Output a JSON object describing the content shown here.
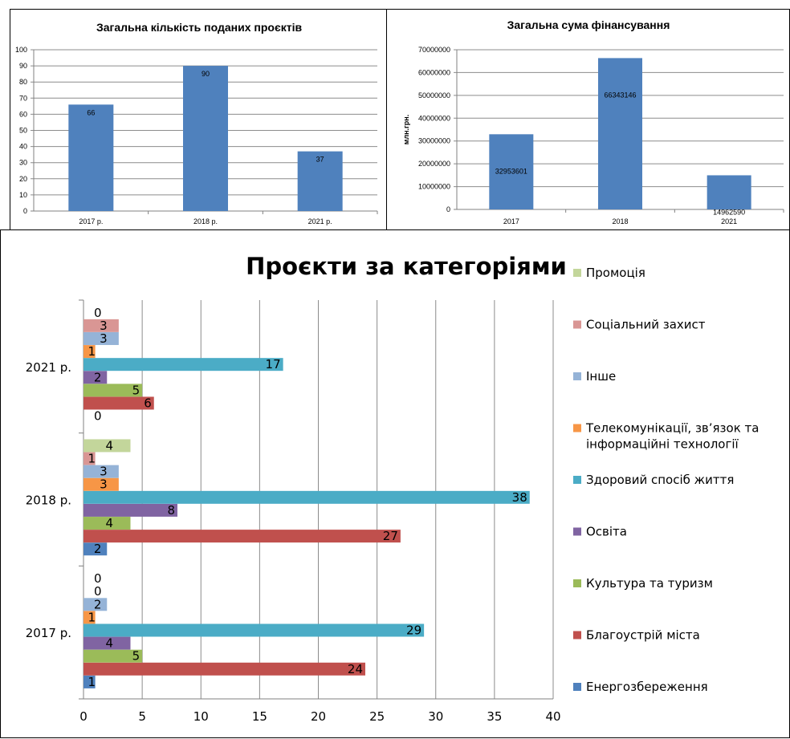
{
  "colors": {
    "bar": "#4F81BD",
    "grid": "#8C8C8C",
    "axis": "#808080"
  },
  "chart_data": [
    {
      "type": "bar",
      "title": "Загальна кількість поданих проєктів",
      "categories": [
        "2017 р.",
        "2018 р.",
        "2021 р."
      ],
      "values": [
        66,
        90,
        37
      ],
      "ylim": [
        0,
        100
      ],
      "yticks": [
        "0",
        "10",
        "20",
        "30",
        "40",
        "50",
        "60",
        "70",
        "80",
        "90",
        "100"
      ],
      "xlabel": "",
      "ylabel": "",
      "grid": true,
      "legend": "none"
    },
    {
      "type": "bar",
      "title": "Загальна сума фінансування",
      "categories": [
        "2017",
        "2018",
        "2021"
      ],
      "values": [
        32953601,
        66343146,
        14962590
      ],
      "ylim": [
        0,
        70000000
      ],
      "yticks": [
        "0",
        "10000000",
        "20000000",
        "30000000",
        "40000000",
        "50000000",
        "60000000",
        "70000000"
      ],
      "xlabel": "",
      "ylabel": "млн.грн.",
      "grid": true,
      "legend": "none"
    },
    {
      "type": "bar",
      "orientation": "horizontal",
      "title": "Проєкти за категоріями",
      "categories": [
        "2017 р.",
        "2018 р.",
        "2021 р."
      ],
      "xlim": [
        0,
        40
      ],
      "xticks": [
        "0",
        "5",
        "10",
        "15",
        "20",
        "25",
        "30",
        "35",
        "40"
      ],
      "grid": true,
      "legend": "right",
      "series": [
        {
          "name": "Енергозбереження",
          "color": "#4F81BD",
          "values": [
            1,
            2,
            0
          ]
        },
        {
          "name": "Благоустрій міста",
          "color": "#C0504D",
          "values": [
            24,
            27,
            6
          ]
        },
        {
          "name": "Культура та туризм",
          "color": "#9BBB59",
          "values": [
            5,
            4,
            5
          ]
        },
        {
          "name": "Освіта",
          "color": "#8064A2",
          "values": [
            4,
            8,
            2
          ]
        },
        {
          "name": "Здоровий спосіб життя",
          "color": "#4BACC6",
          "values": [
            29,
            38,
            17
          ]
        },
        {
          "name": "Телекомунікації, зв’язок та інформаційні технології",
          "color": "#F79646",
          "values": [
            1,
            3,
            1
          ]
        },
        {
          "name": "Інше",
          "color": "#95B3D7",
          "values": [
            2,
            3,
            3
          ]
        },
        {
          "name": "Соціальний захист",
          "color": "#D99694",
          "values": [
            0,
            1,
            3
          ]
        },
        {
          "name": "Промоція",
          "color": "#C3D69B",
          "values": [
            0,
            4,
            0
          ]
        }
      ],
      "legend_lines": [
        [
          "Промоція"
        ],
        [
          "Соціальний захист"
        ],
        [
          "Інше"
        ],
        [
          "Телекомунікації, зв’язок та",
          "інформаційні технології"
        ],
        [
          "Здоровий спосіб життя"
        ],
        [
          "Освіта"
        ],
        [
          "Культура та туризм"
        ],
        [
          "Благоустрій міста"
        ],
        [
          "Енергозбереження"
        ]
      ]
    }
  ]
}
